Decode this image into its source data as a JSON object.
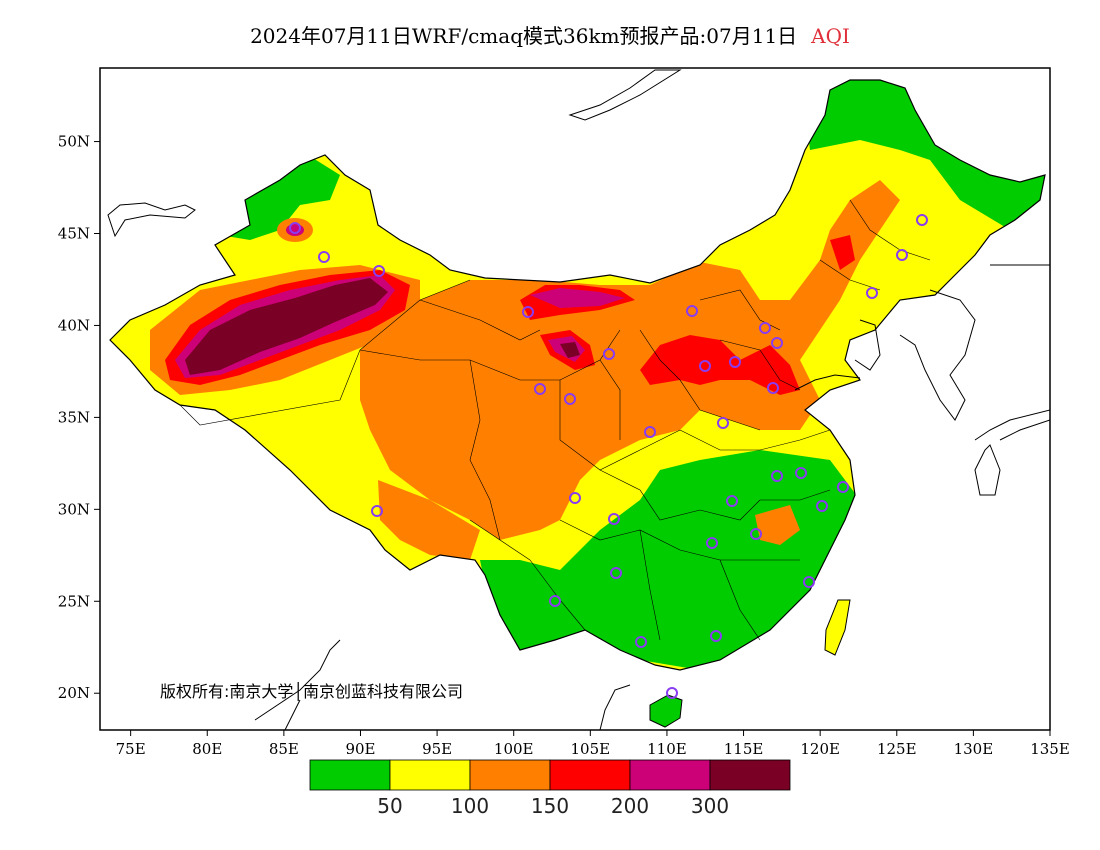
{
  "title": {
    "main": "2024年07月11日WRF/cmaq模式36km预报产品:07月11日",
    "variable": "AQI"
  },
  "axes": {
    "x_ticks": [
      "75E",
      "80E",
      "85E",
      "90E",
      "95E",
      "100E",
      "105E",
      "110E",
      "115E",
      "120E",
      "125E",
      "130E",
      "135E"
    ],
    "y_ticks": [
      "50N",
      "45N",
      "40N",
      "35N",
      "30N",
      "25N",
      "20N"
    ],
    "lon_range": [
      73,
      135
    ],
    "lat_range": [
      18,
      54
    ]
  },
  "copyright": "版权所有:南京大学│南京创蓝科技有限公司",
  "legend": {
    "colors": [
      "#00cc00",
      "#ffff00",
      "#ff8000",
      "#ff0000",
      "#cc0077",
      "#7a0025"
    ],
    "labels": [
      "50",
      "100",
      "150",
      "200",
      "300"
    ]
  },
  "colors": {
    "frame": "#000000",
    "station_marker": "#8a3cf0",
    "sea": "#ffffff"
  }
}
